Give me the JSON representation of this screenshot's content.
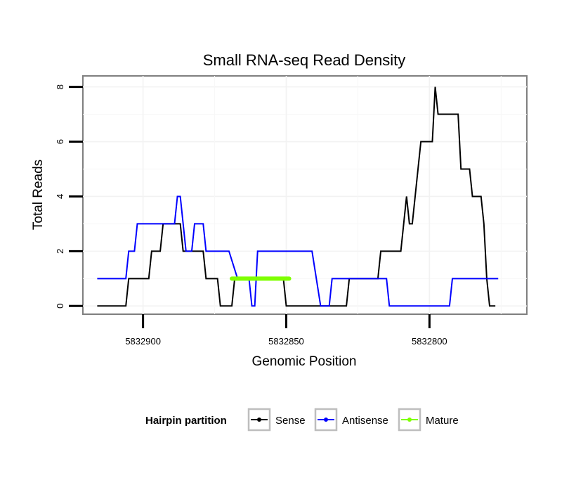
{
  "chart_data": {
    "type": "line",
    "title": "Small RNA-seq Read Density",
    "xlabel": "Genomic Position",
    "ylabel": "Total Reads",
    "x_reversed": true,
    "xlim": [
      5832921,
      5832766
    ],
    "ylim": [
      -0.3,
      8.4
    ],
    "x_ticks": [
      5832900,
      5832850,
      5832800
    ],
    "x_tick_labels": [
      "5832900",
      "5832850",
      "5832800"
    ],
    "y_ticks": [
      0,
      2,
      4,
      6,
      8
    ],
    "y_tick_labels": [
      "0",
      "2",
      "4",
      "6",
      "8"
    ],
    "legend": {
      "title": "Hairpin partition",
      "position": "bottom",
      "entries": [
        {
          "label": "Sense",
          "color": "#000000"
        },
        {
          "label": "Antisense",
          "color": "#0000ff"
        },
        {
          "label": "Mature",
          "color": "#7fff00"
        }
      ]
    },
    "series": [
      {
        "name": "Sense",
        "color": "#000000",
        "points": [
          [
            5832916,
            0
          ],
          [
            5832906,
            0
          ],
          [
            5832905,
            1
          ],
          [
            5832898,
            1
          ],
          [
            5832897,
            2
          ],
          [
            5832894,
            2
          ],
          [
            5832893,
            3
          ],
          [
            5832887,
            3
          ],
          [
            5832886,
            2
          ],
          [
            5832879,
            2
          ],
          [
            5832878,
            1
          ],
          [
            5832874,
            1
          ],
          [
            5832873,
            0
          ],
          [
            5832869,
            0
          ],
          [
            5832868,
            1
          ],
          [
            5832851,
            1
          ],
          [
            5832850,
            0
          ],
          [
            5832829,
            0
          ],
          [
            5832828,
            1
          ],
          [
            5832818,
            1
          ],
          [
            5832817,
            2
          ],
          [
            5832810,
            2
          ],
          [
            5832808,
            4
          ],
          [
            5832807,
            3
          ],
          [
            5832806,
            3
          ],
          [
            5832803,
            6
          ],
          [
            5832799,
            6
          ],
          [
            5832798,
            8
          ],
          [
            5832797,
            7
          ],
          [
            5832790,
            7
          ],
          [
            5832789,
            5
          ],
          [
            5832786,
            5
          ],
          [
            5832785,
            4
          ],
          [
            5832782,
            4
          ],
          [
            5832781,
            3
          ],
          [
            5832780,
            1
          ],
          [
            5832779,
            0
          ],
          [
            5832777,
            0
          ]
        ]
      },
      {
        "name": "Antisense",
        "color": "#0000ff",
        "points": [
          [
            5832916,
            1
          ],
          [
            5832906,
            1
          ],
          [
            5832905,
            2
          ],
          [
            5832903,
            2
          ],
          [
            5832902,
            3
          ],
          [
            5832889,
            3
          ],
          [
            5832888,
            4
          ],
          [
            5832887,
            4
          ],
          [
            5832885,
            2
          ],
          [
            5832883,
            2
          ],
          [
            5832882,
            3
          ],
          [
            5832879,
            3
          ],
          [
            5832878,
            2
          ],
          [
            5832870,
            2
          ],
          [
            5832867,
            1
          ],
          [
            5832863,
            1
          ],
          [
            5832862,
            0
          ],
          [
            5832861,
            0
          ],
          [
            5832860,
            2
          ],
          [
            5832841,
            2
          ],
          [
            5832838,
            0
          ],
          [
            5832835,
            0
          ],
          [
            5832834,
            1
          ],
          [
            5832815,
            1
          ],
          [
            5832814,
            0
          ],
          [
            5832793,
            0
          ],
          [
            5832792,
            1
          ],
          [
            5832776,
            1
          ]
        ]
      },
      {
        "name": "Mature",
        "color": "#7fff00",
        "points": [
          [
            5832869,
            1
          ],
          [
            5832849,
            1
          ]
        ]
      }
    ]
  }
}
